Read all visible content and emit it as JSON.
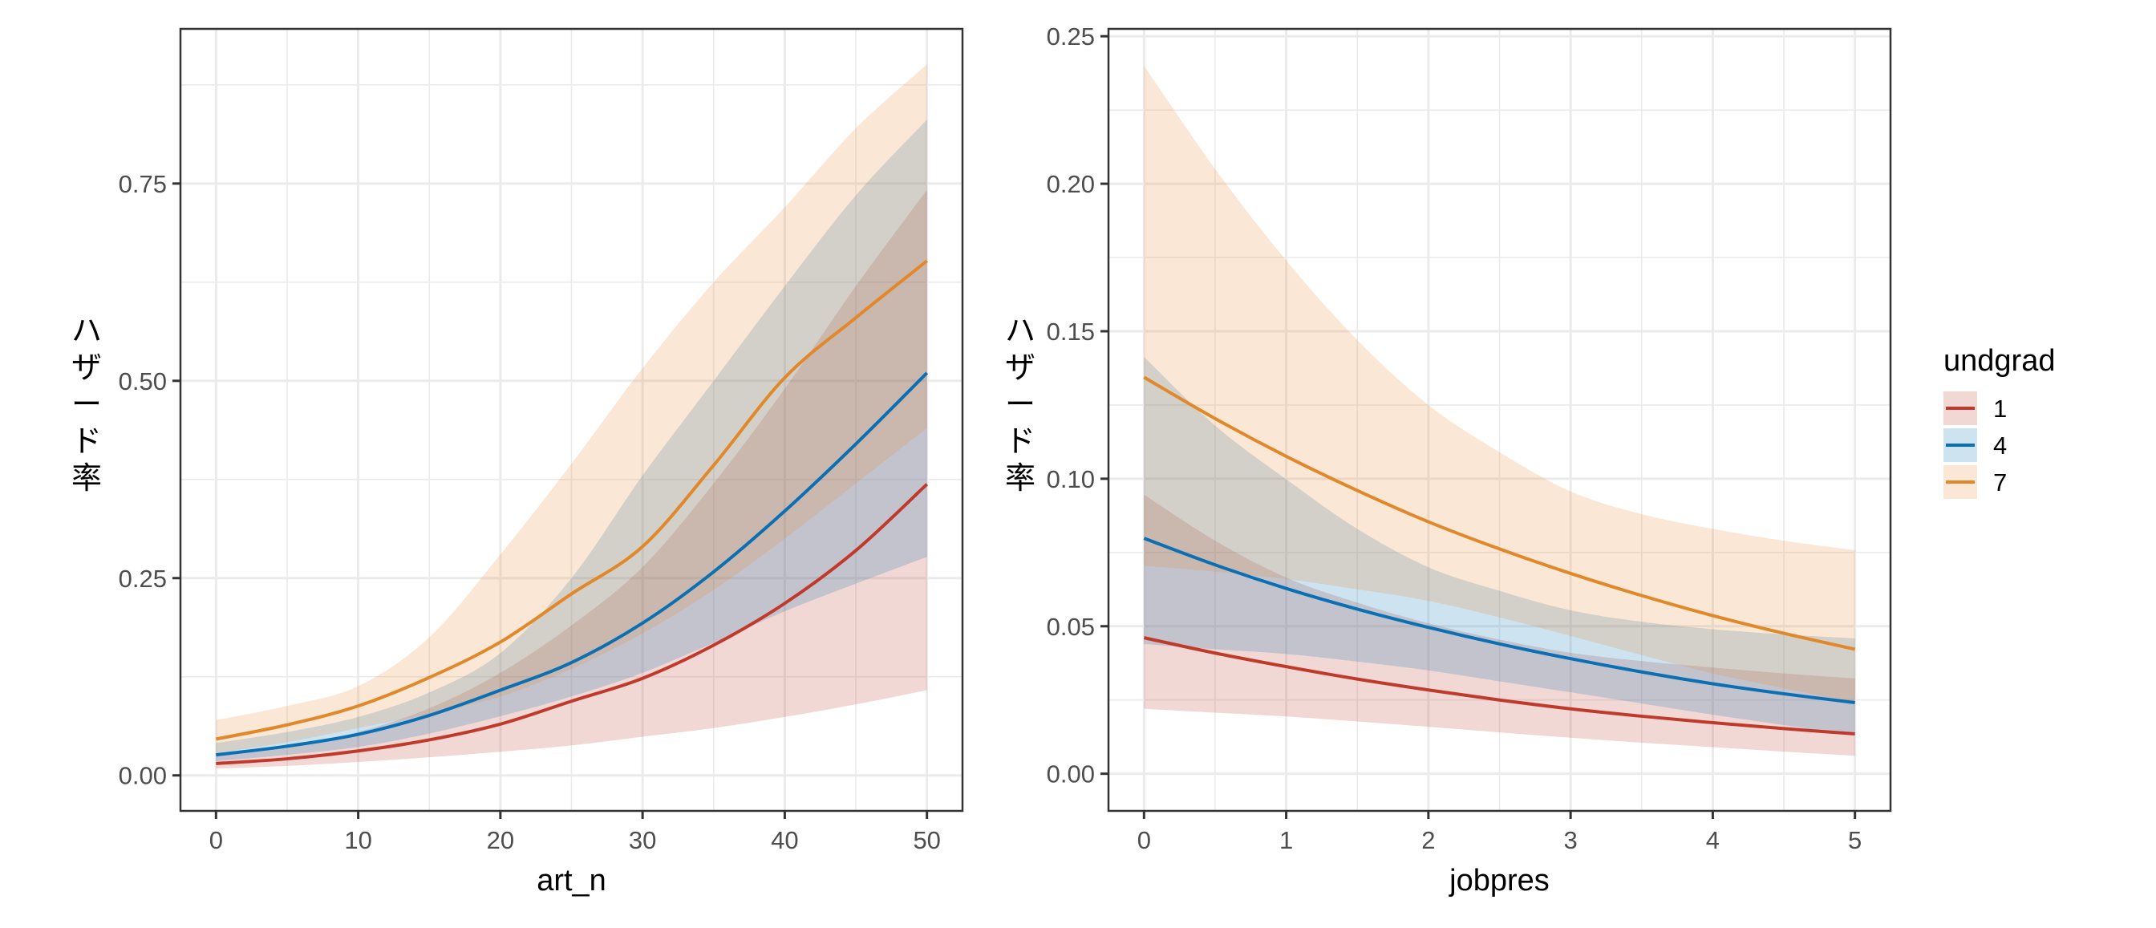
{
  "chart_data": [
    {
      "type": "line",
      "title": "",
      "xlabel": "art_n",
      "ylabel": "ハザード率",
      "xlim": [
        -2.5,
        52.5
      ],
      "ylim": [
        -0.045,
        0.946
      ],
      "x_ticks": [
        0,
        10,
        20,
        30,
        40,
        50
      ],
      "x_tick_labels": [
        "0",
        "10",
        "20",
        "30",
        "40",
        "50"
      ],
      "x_minor": [
        5,
        15,
        25,
        35,
        45
      ],
      "y_ticks": [
        0,
        0.25,
        0.5,
        0.75
      ],
      "y_tick_labels": [
        "0.00",
        "0.25",
        "0.50",
        "0.75"
      ],
      "y_minor": [
        0.125,
        0.375,
        0.625,
        0.875
      ],
      "grid": true,
      "x": [
        0,
        5,
        10,
        15,
        20,
        25,
        30,
        35,
        40,
        45,
        50
      ],
      "series": [
        {
          "name": "1",
          "values": [
            0.015,
            0.021,
            0.031,
            0.045,
            0.065,
            0.094,
            0.123,
            0.165,
            0.218,
            0.285,
            0.369
          ],
          "lower": [
            0.0085,
            0.012,
            0.017,
            0.023,
            0.03,
            0.038,
            0.049,
            0.06,
            0.074,
            0.09,
            0.108
          ],
          "upper": [
            0.028,
            0.038,
            0.055,
            0.085,
            0.13,
            0.19,
            0.264,
            0.37,
            0.49,
            0.62,
            0.742
          ]
        },
        {
          "name": "4",
          "values": [
            0.026,
            0.037,
            0.052,
            0.076,
            0.108,
            0.143,
            0.193,
            0.258,
            0.335,
            0.42,
            0.51
          ],
          "lower": [
            0.018,
            0.026,
            0.036,
            0.053,
            0.075,
            0.1,
            0.13,
            0.168,
            0.208,
            0.243,
            0.277
          ],
          "upper": [
            0.041,
            0.055,
            0.074,
            0.105,
            0.155,
            0.25,
            0.38,
            0.5,
            0.62,
            0.735,
            0.831
          ]
        },
        {
          "name": "7",
          "values": [
            0.046,
            0.064,
            0.088,
            0.124,
            0.169,
            0.23,
            0.29,
            0.393,
            0.504,
            0.58,
            0.652
          ],
          "lower": [
            0.028,
            0.042,
            0.06,
            0.078,
            0.1,
            0.135,
            0.18,
            0.235,
            0.3,
            0.37,
            0.44
          ],
          "upper": [
            0.07,
            0.088,
            0.113,
            0.175,
            0.28,
            0.395,
            0.516,
            0.625,
            0.72,
            0.82,
            0.901
          ]
        }
      ]
    },
    {
      "type": "line",
      "title": "",
      "xlabel": "jobpres",
      "ylabel": "ハザード率",
      "xlim": [
        -0.25,
        5.25
      ],
      "ylim": [
        -0.0126,
        0.2525
      ],
      "x_ticks": [
        0,
        1,
        2,
        3,
        4,
        5
      ],
      "x_tick_labels": [
        "0",
        "1",
        "2",
        "3",
        "4",
        "5"
      ],
      "x_minor": [
        0.5,
        1.5,
        2.5,
        3.5,
        4.5
      ],
      "y_ticks": [
        0,
        0.05,
        0.1,
        0.15,
        0.2,
        0.25
      ],
      "y_tick_labels": [
        "0.00",
        "0.05",
        "0.10",
        "0.15",
        "0.20",
        "0.25"
      ],
      "y_minor": [
        0.025,
        0.075,
        0.125,
        0.175,
        0.225
      ],
      "grid": true,
      "x": [
        0,
        0.5,
        1,
        1.5,
        2,
        2.5,
        3,
        3.5,
        4,
        4.5,
        5
      ],
      "series": [
        {
          "name": "1",
          "values": [
            0.0461,
            0.0409,
            0.0363,
            0.0321,
            0.0284,
            0.025,
            0.022,
            0.0195,
            0.0173,
            0.0153,
            0.0135
          ],
          "lower": [
            0.022,
            0.0207,
            0.0194,
            0.0177,
            0.0159,
            0.014,
            0.0122,
            0.0105,
            0.009,
            0.0075,
            0.0061
          ],
          "upper": [
            0.0946,
            0.079,
            0.0665,
            0.058,
            0.051,
            0.0455,
            0.041,
            0.0382,
            0.036,
            0.034,
            0.0323
          ]
        },
        {
          "name": "4",
          "values": [
            0.0798,
            0.0708,
            0.0628,
            0.0558,
            0.0496,
            0.044,
            0.039,
            0.0345,
            0.0305,
            0.0271,
            0.0241
          ],
          "lower": [
            0.044,
            0.0422,
            0.0406,
            0.038,
            0.035,
            0.0313,
            0.0276,
            0.0238,
            0.02,
            0.0165,
            0.013
          ],
          "upper": [
            0.1413,
            0.118,
            0.0998,
            0.083,
            0.07,
            0.062,
            0.0554,
            0.0515,
            0.049,
            0.0472,
            0.0459
          ]
        },
        {
          "name": "7",
          "values": [
            0.1344,
            0.1204,
            0.1076,
            0.096,
            0.0854,
            0.0762,
            0.0679,
            0.0604,
            0.0536,
            0.0476,
            0.0422
          ],
          "lower": [
            0.0705,
            0.0685,
            0.066,
            0.0625,
            0.0586,
            0.053,
            0.0467,
            0.0402,
            0.034,
            0.029,
            0.024
          ],
          "upper": [
            0.24,
            0.205,
            0.174,
            0.147,
            0.125,
            0.109,
            0.0957,
            0.088,
            0.083,
            0.079,
            0.0758
          ]
        }
      ]
    }
  ],
  "legend": {
    "title": "undgrad",
    "position": "right",
    "items": [
      {
        "label": "1",
        "color": "#c03a2b",
        "fill": "#c03a2b"
      },
      {
        "label": "4",
        "color": "#0a6fb3",
        "fill": "#0a72b5"
      },
      {
        "label": "7",
        "color": "#e0882a",
        "fill": "#e6882f"
      }
    ]
  },
  "ylabel_chars": [
    "ハ",
    "ザ",
    "ー",
    "ド",
    "率"
  ],
  "ribbon_alpha": 0.2
}
